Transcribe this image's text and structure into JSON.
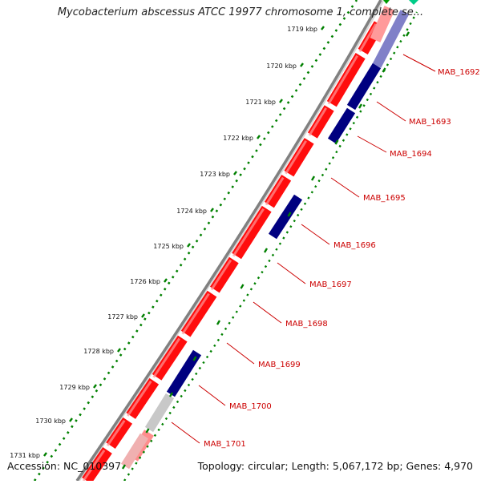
{
  "title": "Mycobacterium abscessus ATCC 19977 chromosome 1, complete se...",
  "footer": {
    "accession": "Accession: NC_010397",
    "summary": "Topology: circular; Length: 5,067,172 bp; Genes: 4,970"
  },
  "scale": {
    "unit": "kbp",
    "ticks": [
      "1719 kbp",
      "1720 kbp",
      "1721 kbp",
      "1722 kbp",
      "1723 kbp",
      "1724 kbp",
      "1725 kbp",
      "1726 kbp",
      "1727 kbp",
      "1728 kbp",
      "1729 kbp",
      "1730 kbp",
      "1731 kbp"
    ]
  },
  "genes": [
    {
      "label": "MAB_1692"
    },
    {
      "label": "MAB_1693"
    },
    {
      "label": "MAB_1694"
    },
    {
      "label": "MAB_1695"
    },
    {
      "label": "MAB_1696"
    },
    {
      "label": "MAB_1697"
    },
    {
      "label": "MAB_1698"
    },
    {
      "label": "MAB_1699"
    },
    {
      "label": "MAB_1700"
    },
    {
      "label": "MAB_1701"
    }
  ],
  "colors": {
    "forward_gene": "#ff0000",
    "reverse_gene": "#000080",
    "other_feature": "#c0c0c0",
    "backbone": "#808080",
    "tick_dots": "#008000",
    "label": "#cc0000"
  }
}
